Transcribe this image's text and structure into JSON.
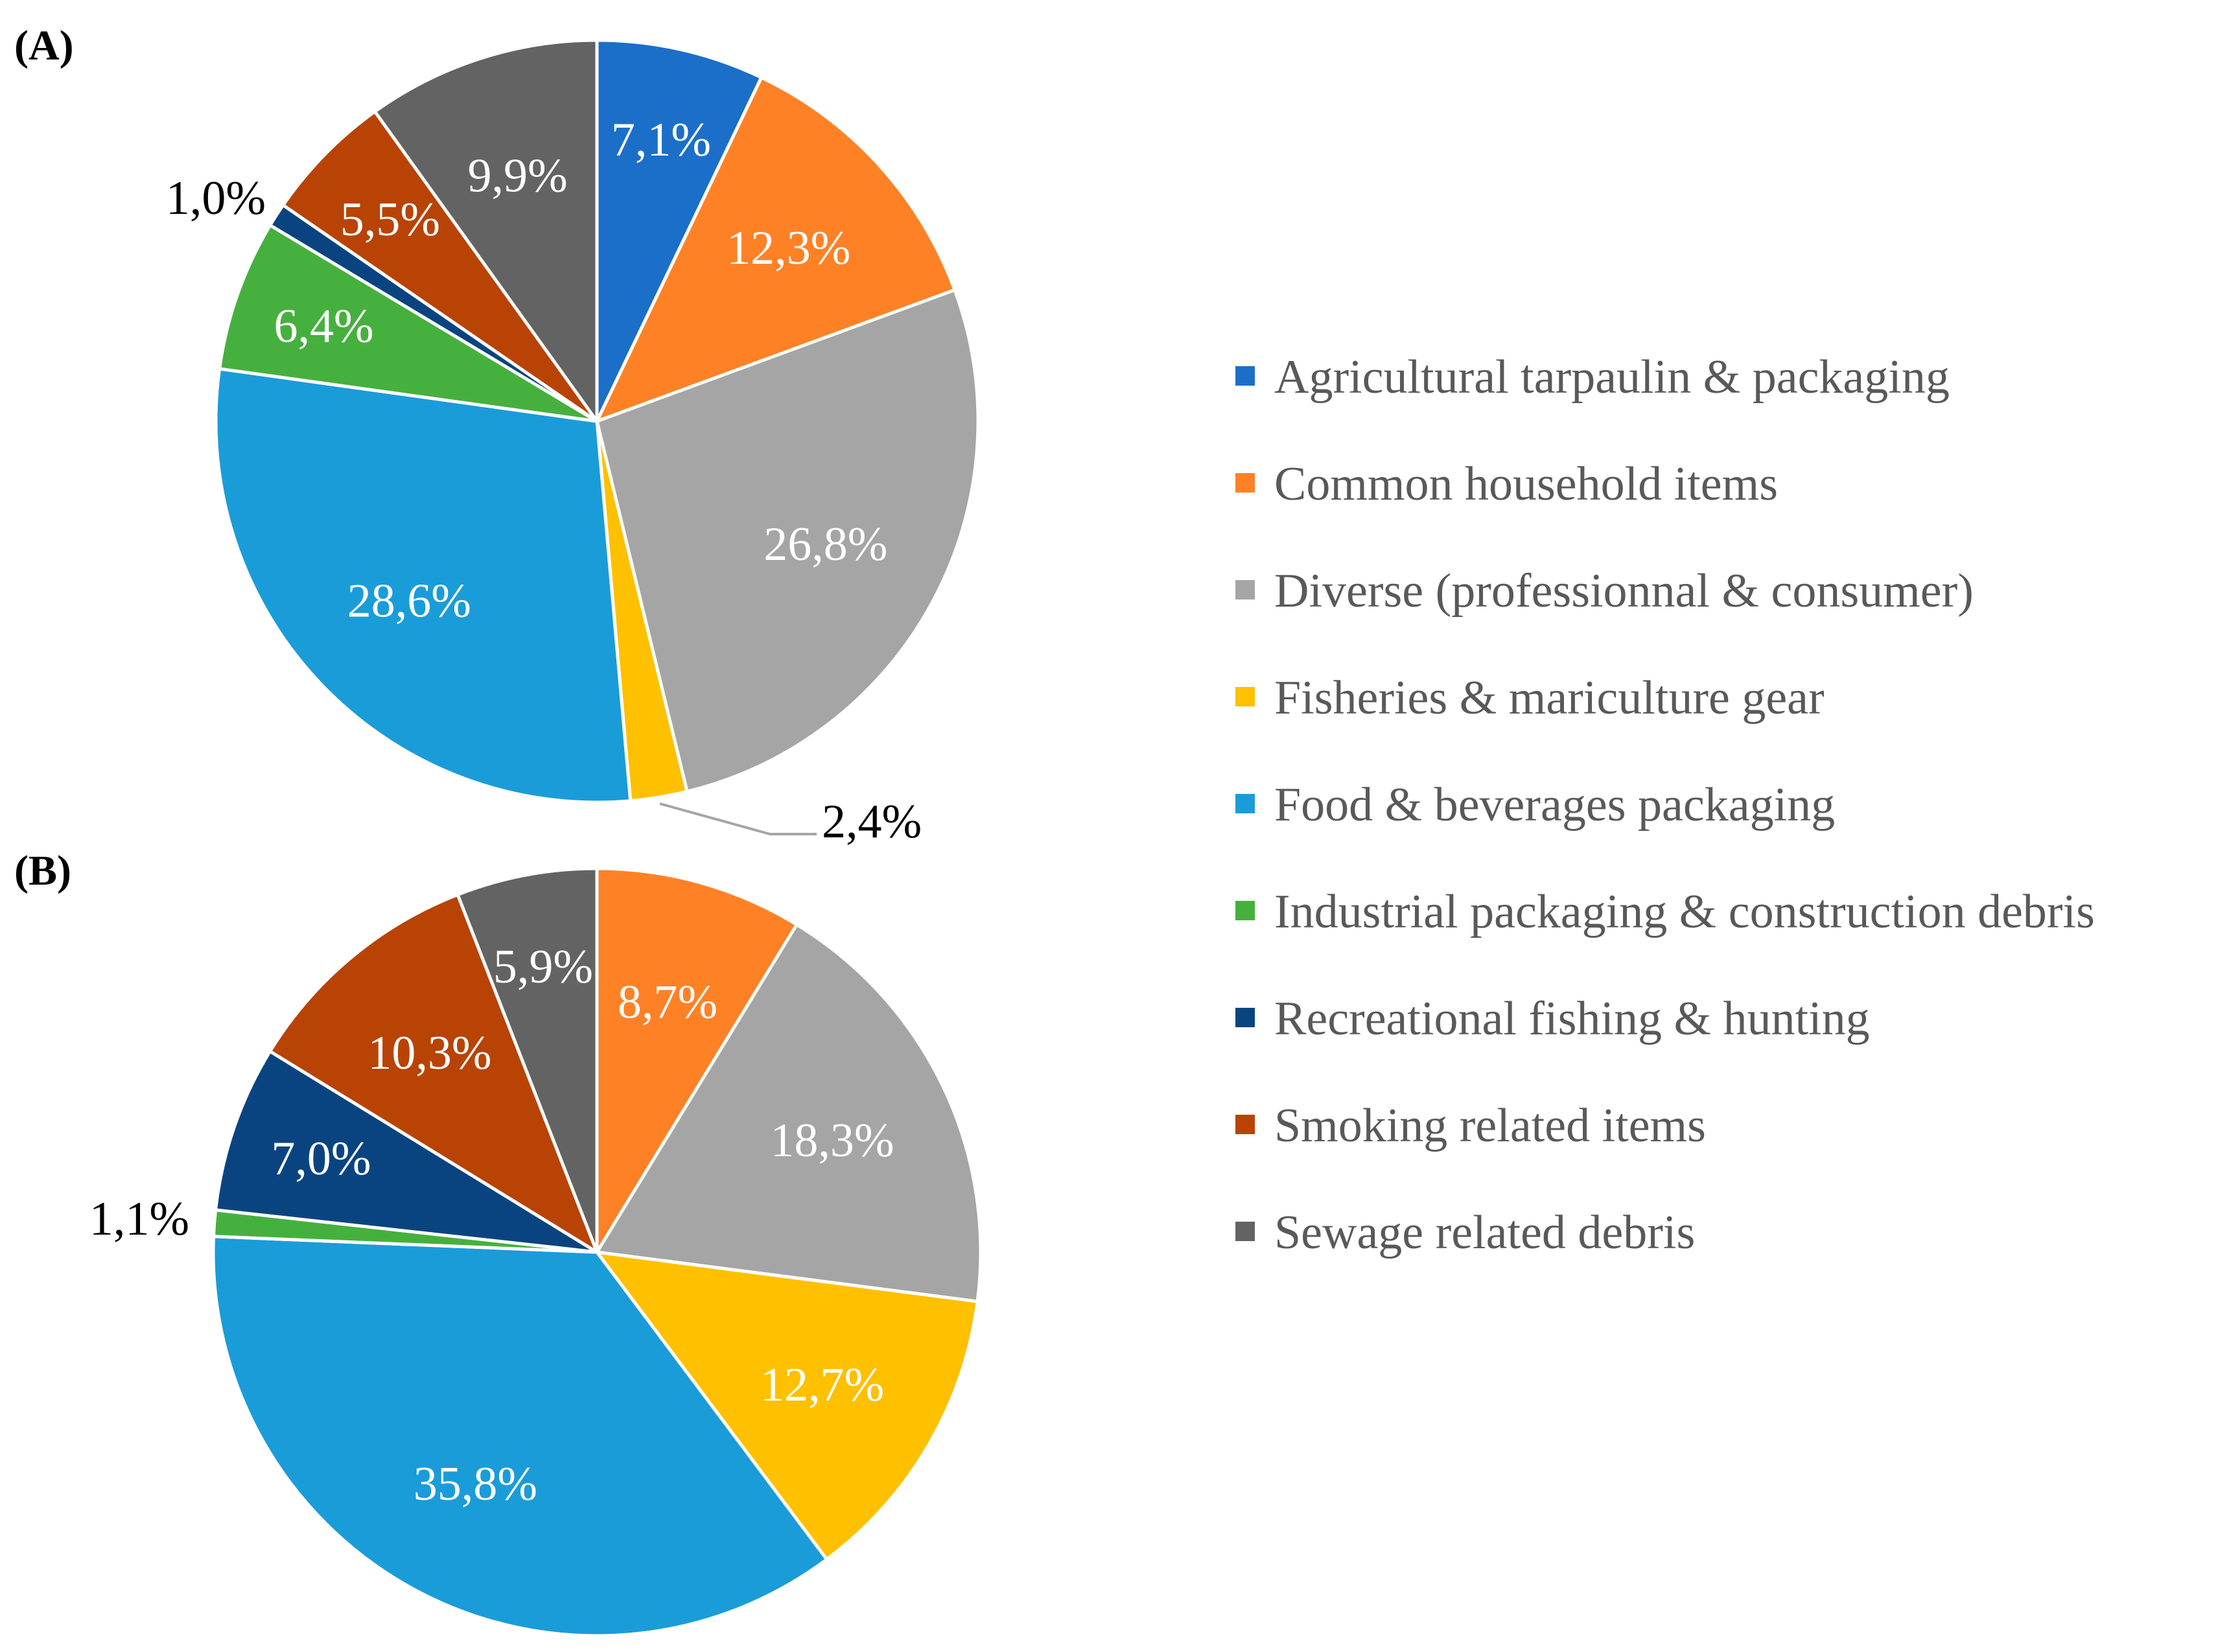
{
  "chart_data": {
    "type": "pie",
    "legend": {
      "position": "right",
      "entries": [
        {
          "label": "Agricultural tarpaulin & packaging",
          "color": "#1B6FC9"
        },
        {
          "label": "Common household items",
          "color": "#FF8125"
        },
        {
          "label": "Diverse (professionnal & consumer)",
          "color": "#A5A5A5"
        },
        {
          "label": "Fisheries & mariculture gear",
          "color": "#FFC000"
        },
        {
          "label": "Food & beverages packaging",
          "color": "#1A9CD9"
        },
        {
          "label": "Industrial packaging & construction debris",
          "color": "#46B03E"
        },
        {
          "label": "Recreational fishing & hunting",
          "color": "#0A4480"
        },
        {
          "label": "Smoking related items",
          "color": "#B84304"
        },
        {
          "label": "Sewage related debris",
          "color": "#636363"
        }
      ]
    },
    "charts": [
      {
        "panel": "(A)",
        "slices": [
          {
            "category": "Agricultural tarpaulin & packaging",
            "value": 7.1,
            "label": "7,1%",
            "color": "#1B6FC9",
            "label_color": "#ffffff",
            "outside": false
          },
          {
            "category": "Common household items",
            "value": 12.3,
            "label": "12,3%",
            "color": "#FF8125",
            "label_color": "#ffffff",
            "outside": false
          },
          {
            "category": "Diverse (professionnal & consumer)",
            "value": 26.8,
            "label": "26,8%",
            "color": "#A5A5A5",
            "label_color": "#ffffff",
            "outside": false
          },
          {
            "category": "Fisheries & mariculture gear",
            "value": 2.4,
            "label": "2,4%",
            "color": "#FFC000",
            "label_color": "#000000",
            "outside": true
          },
          {
            "category": "Food & beverages packaging",
            "value": 28.6,
            "label": "28,6%",
            "color": "#1A9CD9",
            "label_color": "#ffffff",
            "outside": false
          },
          {
            "category": "Industrial packaging & construction debris",
            "value": 6.4,
            "label": "6,4%",
            "color": "#46B03E",
            "label_color": "#ffffff",
            "outside": false
          },
          {
            "category": "Recreational fishing & hunting",
            "value": 1.0,
            "label": "1,0%",
            "color": "#0A4480",
            "label_color": "#000000",
            "outside": true
          },
          {
            "category": "Smoking related items",
            "value": 5.5,
            "label": "5,5%",
            "color": "#B84304",
            "label_color": "#ffffff",
            "outside": false
          },
          {
            "category": "Sewage related debris",
            "value": 9.9,
            "label": "9,9%",
            "color": "#636363",
            "label_color": "#ffffff",
            "outside": false
          }
        ]
      },
      {
        "panel": "(B)",
        "slices": [
          {
            "category": "Common household items",
            "value": 8.7,
            "label": "8,7%",
            "color": "#FF8125",
            "label_color": "#ffffff",
            "outside": false
          },
          {
            "category": "Diverse (professionnal & consumer)",
            "value": 18.3,
            "label": "18,3%",
            "color": "#A5A5A5",
            "label_color": "#ffffff",
            "outside": false
          },
          {
            "category": "Fisheries & mariculture gear",
            "value": 12.7,
            "label": "12,7%",
            "color": "#FFC000",
            "label_color": "#ffffff",
            "outside": false
          },
          {
            "category": "Food & beverages packaging",
            "value": 35.8,
            "label": "35,8%",
            "color": "#1A9CD9",
            "label_color": "#ffffff",
            "outside": false
          },
          {
            "category": "Industrial packaging & construction debris",
            "value": 1.1,
            "label": "1,1%",
            "color": "#46B03E",
            "label_color": "#000000",
            "outside": true
          },
          {
            "category": "Recreational fishing & hunting",
            "value": 7.0,
            "label": "7,0%",
            "color": "#0A4480",
            "label_color": "#ffffff",
            "outside": false
          },
          {
            "category": "Smoking related items",
            "value": 10.3,
            "label": "10,3%",
            "color": "#B84304",
            "label_color": "#ffffff",
            "outside": false
          },
          {
            "category": "Sewage related debris",
            "value": 5.9,
            "label": "5,9%",
            "color": "#636363",
            "label_color": "#ffffff",
            "outside": false
          }
        ]
      }
    ]
  }
}
